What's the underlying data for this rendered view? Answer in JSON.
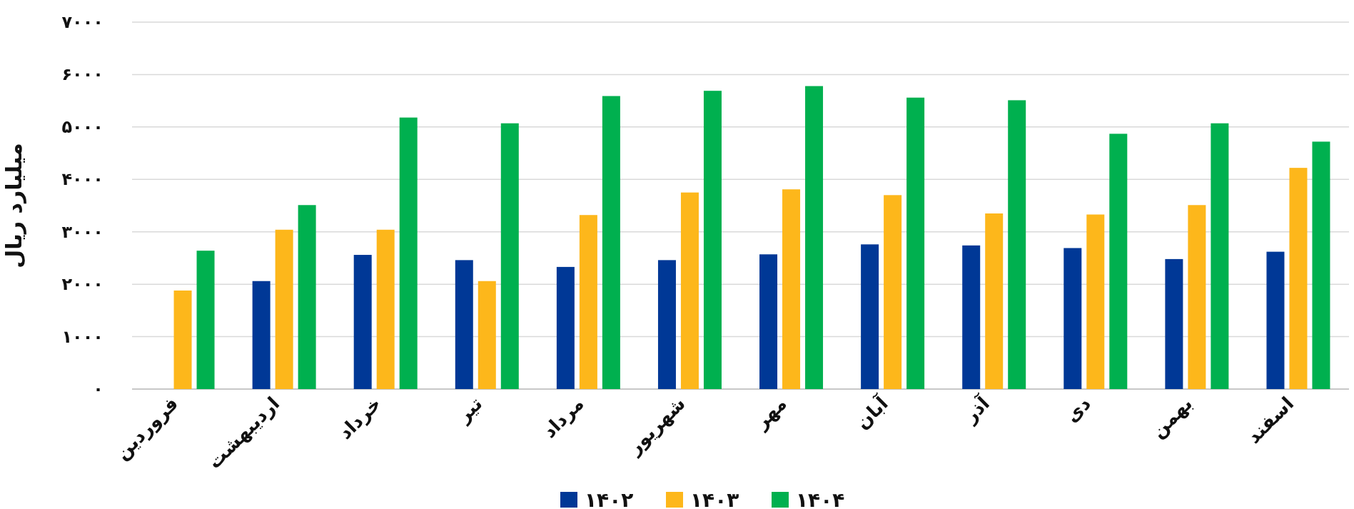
{
  "chart_data": {
    "type": "bar",
    "ylabel": "میلیارد ریال",
    "categories": [
      "فروردین",
      "اردیبهشت",
      "خرداد",
      "تیر",
      "مرداد",
      "شهریور",
      "مهر",
      "آبان",
      "آذر",
      "دی",
      "بهمن",
      "اسفند"
    ],
    "series": [
      {
        "name": "۱۴۰۲",
        "color": "#003896",
        "values": [
          null,
          2060,
          2560,
          2460,
          2330,
          2460,
          2570,
          2760,
          2740,
          2690,
          2480,
          2620
        ]
      },
      {
        "name": "۱۴۰۳",
        "color": "#fdb71b",
        "values": [
          1880,
          3040,
          3040,
          2060,
          3320,
          3750,
          3810,
          3700,
          3350,
          3330,
          3510,
          4220
        ]
      },
      {
        "name": "۱۴۰۴",
        "color": "#00b04f",
        "values": [
          2640,
          3510,
          5180,
          5070,
          5590,
          5690,
          5780,
          5560,
          5510,
          4870,
          5070,
          4720
        ]
      }
    ],
    "ylim": [
      0,
      7000
    ],
    "yticks": [
      {
        "value": 0,
        "label": "۰"
      },
      {
        "value": 1000,
        "label": "۱۰۰۰"
      },
      {
        "value": 2000,
        "label": "۲۰۰۰"
      },
      {
        "value": 3000,
        "label": "۳۰۰۰"
      },
      {
        "value": 4000,
        "label": "۴۰۰۰"
      },
      {
        "value": 5000,
        "label": "۵۰۰۰"
      },
      {
        "value": 6000,
        "label": "۶۰۰۰"
      },
      {
        "value": 7000,
        "label": "۷۰۰۰"
      }
    ],
    "grid": "y",
    "legend": "bottom"
  }
}
